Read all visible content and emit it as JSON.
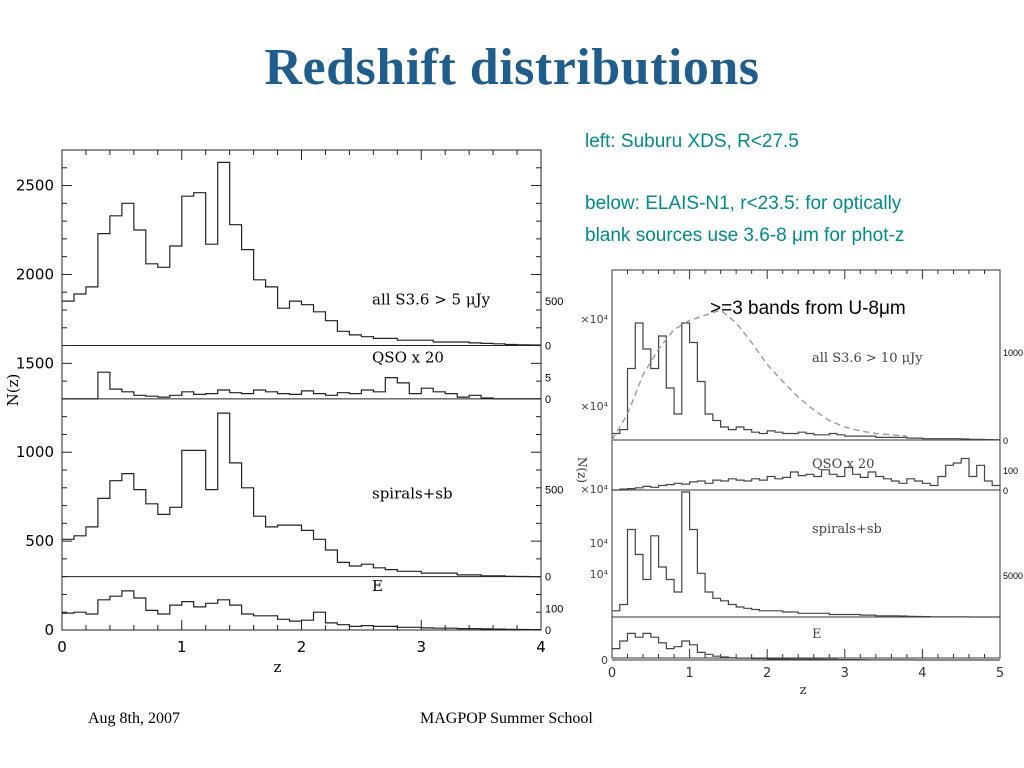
{
  "slide": {
    "title": "Redshift distributions",
    "note_left": "left: Suburu XDS, R<27.5",
    "note_below_1": "below: ELAIS-N1, r<23.5: for optically",
    "note_below_2": "blank sources use 3.6-8 μm for phot-z",
    "callout": ">=3 bands from U-8μm",
    "footer_date": "Aug 8th, 2007",
    "footer_event": "MAGPOP Summer School"
  },
  "colors": {
    "title": "#1f5e8c",
    "note": "#008b8b"
  },
  "chart_data": [
    {
      "type": "histogram",
      "title": "",
      "xlabel": "z",
      "ylabel": "N(z)",
      "xlim": [
        0,
        4
      ],
      "ylim": [
        0,
        2700
      ],
      "x_ticks": [
        0,
        1,
        2,
        3,
        4
      ],
      "y_ticks": [
        0,
        500,
        1000,
        1500,
        2000,
        2500
      ],
      "bin_width": 0.1,
      "panels": [
        {
          "label": "all S3.6 > 5 μJy",
          "baseline": 1600,
          "scale_labels": [
            "500",
            "0"
          ],
          "values": [
            1850,
            1890,
            1930,
            2230,
            2330,
            2400,
            2250,
            2060,
            2040,
            2160,
            2440,
            2460,
            2170,
            2630,
            2280,
            2140,
            1970,
            1930,
            1810,
            1850,
            1830,
            1790,
            1740,
            1680,
            1660,
            1650,
            1640,
            1640,
            1630,
            1630,
            1630,
            1620,
            1620,
            1620,
            1615,
            1612,
            1610,
            1606,
            1604,
            1603
          ]
        },
        {
          "label": "QSO x 20",
          "baseline": 1300,
          "scale_labels": [
            "5",
            "0"
          ],
          "values": [
            1300,
            1300,
            1300,
            1450,
            1355,
            1340,
            1320,
            1315,
            1310,
            1320,
            1340,
            1325,
            1330,
            1350,
            1335,
            1330,
            1350,
            1340,
            1330,
            1325,
            1345,
            1330,
            1320,
            1335,
            1330,
            1350,
            1340,
            1420,
            1390,
            1330,
            1360,
            1340,
            1330,
            1310,
            1320,
            1305,
            1300,
            1300,
            1300,
            1300
          ]
        },
        {
          "label": "spirals+sb",
          "baseline": 300,
          "scale_labels": [
            "500",
            "0"
          ],
          "values": [
            510,
            530,
            580,
            740,
            840,
            880,
            790,
            710,
            650,
            690,
            1010,
            1010,
            790,
            1220,
            940,
            800,
            640,
            580,
            590,
            590,
            560,
            510,
            450,
            380,
            360,
            370,
            350,
            340,
            330,
            330,
            320,
            320,
            320,
            310,
            310,
            305,
            305,
            302,
            301,
            300
          ]
        },
        {
          "label": "E",
          "baseline": 0,
          "scale_labels": [
            "100",
            "0"
          ],
          "values": [
            95,
            100,
            90,
            170,
            190,
            220,
            180,
            110,
            90,
            140,
            160,
            130,
            150,
            170,
            140,
            90,
            80,
            80,
            60,
            50,
            55,
            100,
            40,
            30,
            20,
            25,
            20,
            20,
            15,
            15,
            12,
            10,
            10,
            8,
            8,
            6,
            5,
            4,
            3,
            2
          ]
        }
      ]
    },
    {
      "type": "histogram",
      "title": "",
      "xlabel": "z",
      "ylabel": "N(z)",
      "xlim": [
        0,
        5
      ],
      "x_ticks": [
        0,
        1,
        2,
        3,
        4,
        5
      ],
      "bin_width": 0.1,
      "panels": [
        {
          "label": "all S3.6 > 10 μJy",
          "scale_labels": [
            "1000",
            "0"
          ],
          "left_tick_labels": [
            "×10⁴",
            "×10⁴"
          ],
          "values": [
            0.05,
            0.08,
            0.55,
            0.9,
            0.7,
            0.55,
            0.8,
            0.4,
            0.2,
            0.9,
            0.75,
            0.45,
            0.2,
            0.15,
            0.1,
            0.08,
            0.1,
            0.08,
            0.06,
            0.05,
            0.07,
            0.06,
            0.05,
            0.05,
            0.06,
            0.05,
            0.04,
            0.04,
            0.05,
            0.04,
            0.03,
            0.03,
            0.03,
            0.03,
            0.02,
            0.02,
            0.02,
            0.02,
            0.015,
            0.015,
            0.01,
            0.01,
            0.01,
            0.01,
            0.01,
            0.008,
            0.005,
            0.005,
            0.003,
            0.002
          ],
          "model_curve": [
            0.0,
            0.2,
            0.5,
            0.7,
            0.85,
            0.92,
            0.96,
            1.0,
            0.9,
            0.75,
            0.58,
            0.45,
            0.33,
            0.23,
            0.15,
            0.1,
            0.07,
            0.05,
            0.04,
            0.03
          ]
        },
        {
          "label": "QSO x 20",
          "scale_labels": [
            "100",
            "0"
          ],
          "left_tick_labels": [
            "×10⁴"
          ],
          "values": [
            0,
            0.02,
            0.03,
            0.05,
            0.08,
            0.06,
            0.1,
            0.12,
            0.15,
            0.13,
            0.18,
            0.2,
            0.15,
            0.22,
            0.2,
            0.25,
            0.22,
            0.2,
            0.25,
            0.22,
            0.3,
            0.25,
            0.28,
            0.4,
            0.32,
            0.35,
            0.3,
            0.45,
            0.35,
            0.3,
            0.5,
            0.35,
            0.28,
            0.4,
            0.3,
            0.25,
            0.2,
            0.15,
            0.25,
            0.2,
            0.15,
            0.1,
            0.3,
            0.55,
            0.6,
            0.7,
            0.3,
            0.55,
            0.2,
            0.1
          ]
        },
        {
          "label": "spirals+sb",
          "scale_labels": [
            "5000"
          ],
          "left_tick_labels": [
            "10⁴",
            "10⁴"
          ],
          "values": [
            0.05,
            0.1,
            0.7,
            0.5,
            0.3,
            0.65,
            0.4,
            0.3,
            0.2,
            1.0,
            0.7,
            0.35,
            0.2,
            0.15,
            0.13,
            0.1,
            0.08,
            0.07,
            0.06,
            0.05,
            0.05,
            0.05,
            0.04,
            0.04,
            0.03,
            0.03,
            0.03,
            0.03,
            0.02,
            0.02,
            0.02,
            0.02,
            0.015,
            0.015,
            0.01,
            0.01,
            0.01,
            0.008,
            0.005,
            0.004,
            0.003,
            0.002,
            0.002,
            0.001,
            0.001,
            0.001,
            0,
            0,
            0,
            0
          ]
        },
        {
          "label": "E",
          "scale_labels": [],
          "left_tick_labels": [
            "0"
          ],
          "values": [
            0.3,
            0.5,
            0.7,
            0.6,
            0.7,
            0.6,
            0.45,
            0.3,
            0.35,
            0.5,
            0.4,
            0.2,
            0.15,
            0.1,
            0.08,
            0.06,
            0.05,
            0.05,
            0.04,
            0.04,
            0.03,
            0.03,
            0.03,
            0.02,
            0.02,
            0.02,
            0.02,
            0.015,
            0.015,
            0.01,
            0.01,
            0.01,
            0.008,
            0.006,
            0.005,
            0.004,
            0.003,
            0.002,
            0.002,
            0.001,
            0.001,
            0,
            0,
            0,
            0,
            0,
            0,
            0,
            0,
            0
          ]
        }
      ]
    }
  ]
}
